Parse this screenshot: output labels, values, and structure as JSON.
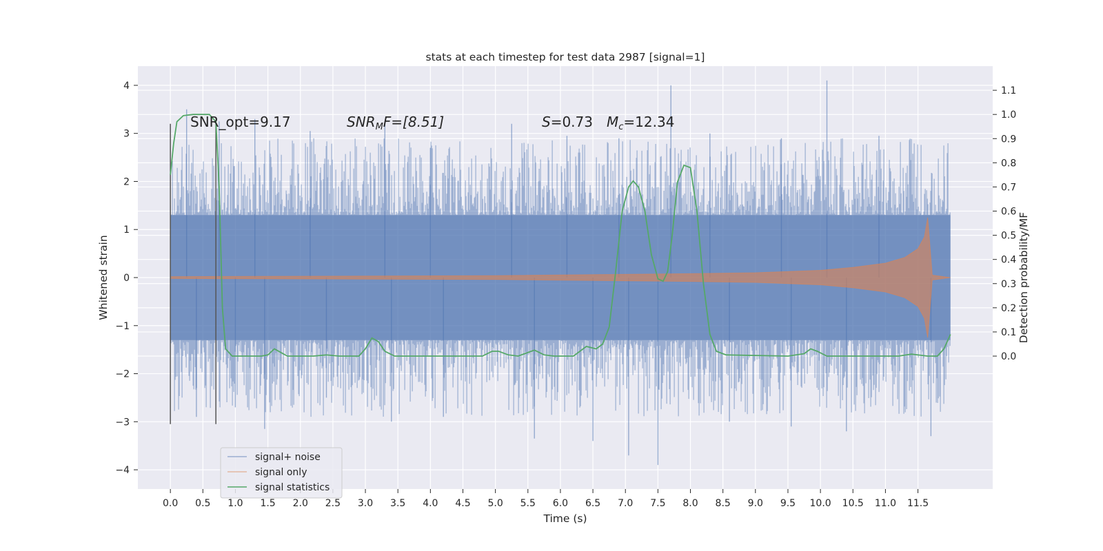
{
  "chart_data": {
    "type": "line",
    "title": "stats at each timestep for test data 2987 [signal=1]",
    "xlabel": "Time (s)",
    "ylabel": "Whitened strain",
    "y2label": "Detection probability/MF",
    "xlim": [
      -0.5,
      12.65
    ],
    "ylim": [
      -4.4,
      4.4
    ],
    "y2lim": [
      -0.55,
      1.2
    ],
    "x_ticks": [
      "0.0",
      "0.5",
      "1.0",
      "1.5",
      "2.0",
      "2.5",
      "3.0",
      "3.5",
      "4.0",
      "4.5",
      "5.0",
      "5.5",
      "6.0",
      "6.5",
      "7.0",
      "7.5",
      "8.0",
      "8.5",
      "9.0",
      "9.5",
      "10.0",
      "10.5",
      "11.0",
      "11.5"
    ],
    "y_ticks": [
      4,
      3,
      2,
      1,
      0,
      -1,
      -2,
      -3,
      -4
    ],
    "y_tick_labels": [
      "4",
      "3",
      "2",
      "1",
      "0",
      "−1",
      "−2",
      "−3",
      "−4"
    ],
    "y2_ticks": [
      "1.1",
      "1.0",
      "0.9",
      "0.8",
      "0.7",
      "0.6",
      "0.5",
      "0.4",
      "0.3",
      "0.2",
      "0.1",
      "0.0"
    ],
    "grid": true,
    "legend_position": "bottom-left",
    "annotations": {
      "snr_opt": "SNR_opt=9.17",
      "snr_mf_var": "SNR",
      "snr_mf_sub": "M",
      "snr_mf_rest": "F=[8.51]",
      "s_var": "S",
      "s_rest": "=0.73",
      "mc_var": "M",
      "mc_sub": "c",
      "mc_rest": "=12.34"
    },
    "markers": {
      "window_start": 0.0,
      "window_end": 0.7,
      "ymin": -3.05,
      "ymax": 3.2
    },
    "series": [
      {
        "name": "signal+ noise",
        "color": "#4c72b0",
        "x_range": [
          0.0,
          12.0
        ],
        "core_y_range": [
          -1.3,
          1.3
        ],
        "peaks": [
          {
            "x": 0.25,
            "y": 3.5
          },
          {
            "x": 0.4,
            "y": -2.9
          },
          {
            "x": 0.75,
            "y": 3.25
          },
          {
            "x": 1.0,
            "y": -2.7
          },
          {
            "x": 1.3,
            "y": 3.3
          },
          {
            "x": 1.45,
            "y": -3.15
          },
          {
            "x": 2.15,
            "y": 3.05
          },
          {
            "x": 2.4,
            "y": -2.5
          },
          {
            "x": 3.3,
            "y": 3.25
          },
          {
            "x": 3.4,
            "y": -3.0
          },
          {
            "x": 4.0,
            "y": 2.7
          },
          {
            "x": 4.2,
            "y": -2.9
          },
          {
            "x": 5.25,
            "y": 3.2
          },
          {
            "x": 5.6,
            "y": -3.35
          },
          {
            "x": 6.1,
            "y": 2.95
          },
          {
            "x": 6.5,
            "y": -3.4
          },
          {
            "x": 6.9,
            "y": 2.9
          },
          {
            "x": 7.05,
            "y": -3.7
          },
          {
            "x": 7.5,
            "y": -3.9
          },
          {
            "x": 7.7,
            "y": 4.0
          },
          {
            "x": 8.3,
            "y": 3.0
          },
          {
            "x": 8.6,
            "y": -3.0
          },
          {
            "x": 9.4,
            "y": 2.9
          },
          {
            "x": 9.55,
            "y": -3.1
          },
          {
            "x": 10.1,
            "y": 4.1
          },
          {
            "x": 10.4,
            "y": -3.2
          },
          {
            "x": 10.9,
            "y": 2.95
          },
          {
            "x": 11.7,
            "y": -3.3
          }
        ]
      },
      {
        "name": "signal only",
        "color": "#dd8452",
        "envelope": [
          {
            "x": 0.0,
            "y": 0.02
          },
          {
            "x": 5.0,
            "y": 0.04
          },
          {
            "x": 8.0,
            "y": 0.08
          },
          {
            "x": 9.0,
            "y": 0.1
          },
          {
            "x": 10.0,
            "y": 0.15
          },
          {
            "x": 10.5,
            "y": 0.21
          },
          {
            "x": 11.0,
            "y": 0.3
          },
          {
            "x": 11.3,
            "y": 0.42
          },
          {
            "x": 11.5,
            "y": 0.6
          },
          {
            "x": 11.6,
            "y": 0.85
          },
          {
            "x": 11.65,
            "y": 1.25
          },
          {
            "x": 11.72,
            "y": 0.05
          },
          {
            "x": 12.0,
            "y": 0.0
          }
        ]
      },
      {
        "name": "signal statistics",
        "color": "#55a868",
        "points": [
          {
            "x": 0.0,
            "y": 0.75
          },
          {
            "x": 0.05,
            "y": 0.88
          },
          {
            "x": 0.1,
            "y": 0.97
          },
          {
            "x": 0.2,
            "y": 0.995
          },
          {
            "x": 0.35,
            "y": 1.0
          },
          {
            "x": 0.6,
            "y": 1.0
          },
          {
            "x": 0.7,
            "y": 0.97
          },
          {
            "x": 0.75,
            "y": 0.7
          },
          {
            "x": 0.8,
            "y": 0.2
          },
          {
            "x": 0.85,
            "y": 0.03
          },
          {
            "x": 0.95,
            "y": 0.0
          },
          {
            "x": 1.4,
            "y": 0.0
          },
          {
            "x": 1.5,
            "y": 0.005
          },
          {
            "x": 1.6,
            "y": 0.03
          },
          {
            "x": 1.7,
            "y": 0.015
          },
          {
            "x": 1.8,
            "y": 0.0
          },
          {
            "x": 2.2,
            "y": 0.0
          },
          {
            "x": 2.4,
            "y": 0.005
          },
          {
            "x": 2.6,
            "y": 0.0
          },
          {
            "x": 2.9,
            "y": 0.0
          },
          {
            "x": 3.0,
            "y": 0.03
          },
          {
            "x": 3.1,
            "y": 0.075
          },
          {
            "x": 3.2,
            "y": 0.06
          },
          {
            "x": 3.3,
            "y": 0.02
          },
          {
            "x": 3.45,
            "y": 0.0
          },
          {
            "x": 4.8,
            "y": 0.0
          },
          {
            "x": 4.95,
            "y": 0.02
          },
          {
            "x": 5.05,
            "y": 0.02
          },
          {
            "x": 5.2,
            "y": 0.005
          },
          {
            "x": 5.35,
            "y": 0.0
          },
          {
            "x": 5.45,
            "y": 0.01
          },
          {
            "x": 5.6,
            "y": 0.025
          },
          {
            "x": 5.75,
            "y": 0.005
          },
          {
            "x": 5.9,
            "y": 0.0
          },
          {
            "x": 6.2,
            "y": 0.0
          },
          {
            "x": 6.3,
            "y": 0.02
          },
          {
            "x": 6.4,
            "y": 0.04
          },
          {
            "x": 6.55,
            "y": 0.03
          },
          {
            "x": 6.65,
            "y": 0.05
          },
          {
            "x": 6.75,
            "y": 0.12
          },
          {
            "x": 6.85,
            "y": 0.35
          },
          {
            "x": 6.95,
            "y": 0.6
          },
          {
            "x": 7.05,
            "y": 0.7
          },
          {
            "x": 7.12,
            "y": 0.725
          },
          {
            "x": 7.2,
            "y": 0.7
          },
          {
            "x": 7.3,
            "y": 0.6
          },
          {
            "x": 7.4,
            "y": 0.42
          },
          {
            "x": 7.5,
            "y": 0.32
          },
          {
            "x": 7.58,
            "y": 0.31
          },
          {
            "x": 7.65,
            "y": 0.35
          },
          {
            "x": 7.72,
            "y": 0.5
          },
          {
            "x": 7.8,
            "y": 0.72
          },
          {
            "x": 7.9,
            "y": 0.79
          },
          {
            "x": 8.0,
            "y": 0.78
          },
          {
            "x": 8.1,
            "y": 0.6
          },
          {
            "x": 8.2,
            "y": 0.3
          },
          {
            "x": 8.3,
            "y": 0.09
          },
          {
            "x": 8.4,
            "y": 0.02
          },
          {
            "x": 8.55,
            "y": 0.005
          },
          {
            "x": 9.5,
            "y": 0.0
          },
          {
            "x": 9.75,
            "y": 0.01
          },
          {
            "x": 9.85,
            "y": 0.03
          },
          {
            "x": 9.95,
            "y": 0.02
          },
          {
            "x": 10.1,
            "y": 0.0
          },
          {
            "x": 11.2,
            "y": 0.0
          },
          {
            "x": 11.4,
            "y": 0.008
          },
          {
            "x": 11.65,
            "y": 0.0
          },
          {
            "x": 11.8,
            "y": 0.0
          },
          {
            "x": 11.9,
            "y": 0.03
          },
          {
            "x": 12.0,
            "y": 0.09
          }
        ]
      }
    ]
  }
}
